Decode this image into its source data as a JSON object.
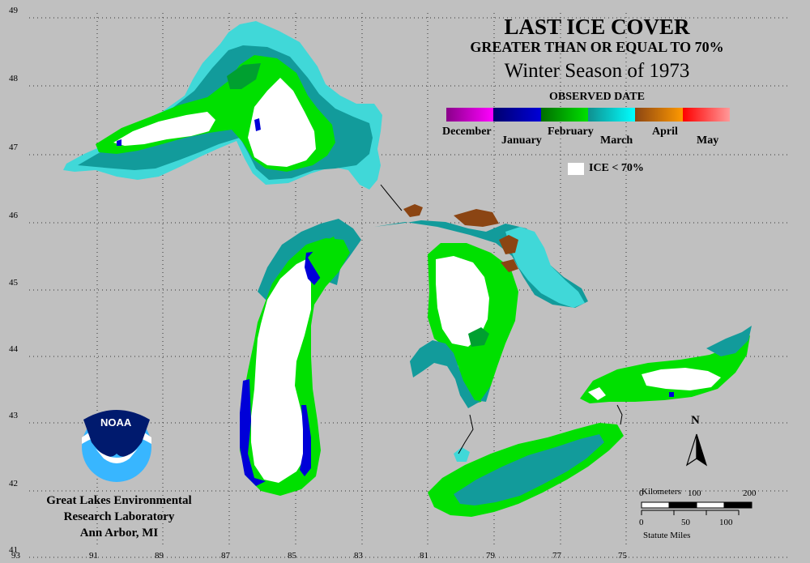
{
  "title": {
    "line1": "LAST ICE COVER",
    "line2": "GREATER THAN OR EQUAL TO 70%",
    "line3": "Winter Season of 1973"
  },
  "legend": {
    "heading": "OBSERVED DATE",
    "months": [
      {
        "label": "December",
        "color_a": "#8a008a",
        "color_b": "#ff00ff"
      },
      {
        "label": "January",
        "color_a": "#00006e",
        "color_b": "#0000d8"
      },
      {
        "label": "February",
        "color_a": "#006e00",
        "color_b": "#00e000"
      },
      {
        "label": "March",
        "color_a": "#109090",
        "color_b": "#00ffff"
      },
      {
        "label": "April",
        "color_a": "#8b4513",
        "color_b": "#ff9900"
      },
      {
        "label": "May",
        "color_a": "#ff0000",
        "color_b": "#ff9999"
      }
    ],
    "ice_label": "ICE < 70%"
  },
  "colors": {
    "background": "#c0c0c0",
    "white": "#ffffff",
    "green": "#00e000",
    "teal": "#129b9b",
    "cyan": "#40d8d8",
    "darkgreen": "#00a030",
    "blue": "#0000d8",
    "brown": "#8b4513"
  },
  "grid": {
    "longitudes": [
      "93",
      "91",
      "89",
      "87",
      "85",
      "83",
      "81",
      "79",
      "77",
      "75"
    ],
    "latitudes": [
      "49",
      "48",
      "47",
      "46",
      "45",
      "44",
      "43",
      "42",
      "41"
    ]
  },
  "compass": {
    "label": "N"
  },
  "scale": {
    "km_label": "Kilometers",
    "km_ticks": [
      "0",
      "100",
      "200"
    ],
    "mi_ticks": [
      "0",
      "50",
      "100"
    ],
    "mi_label": "Statute Miles"
  },
  "logo": {
    "text": "NOAA"
  },
  "credit": {
    "line1": "Great Lakes Environmental",
    "line2": "Research Laboratory",
    "line3": "Ann Arbor, MI"
  }
}
